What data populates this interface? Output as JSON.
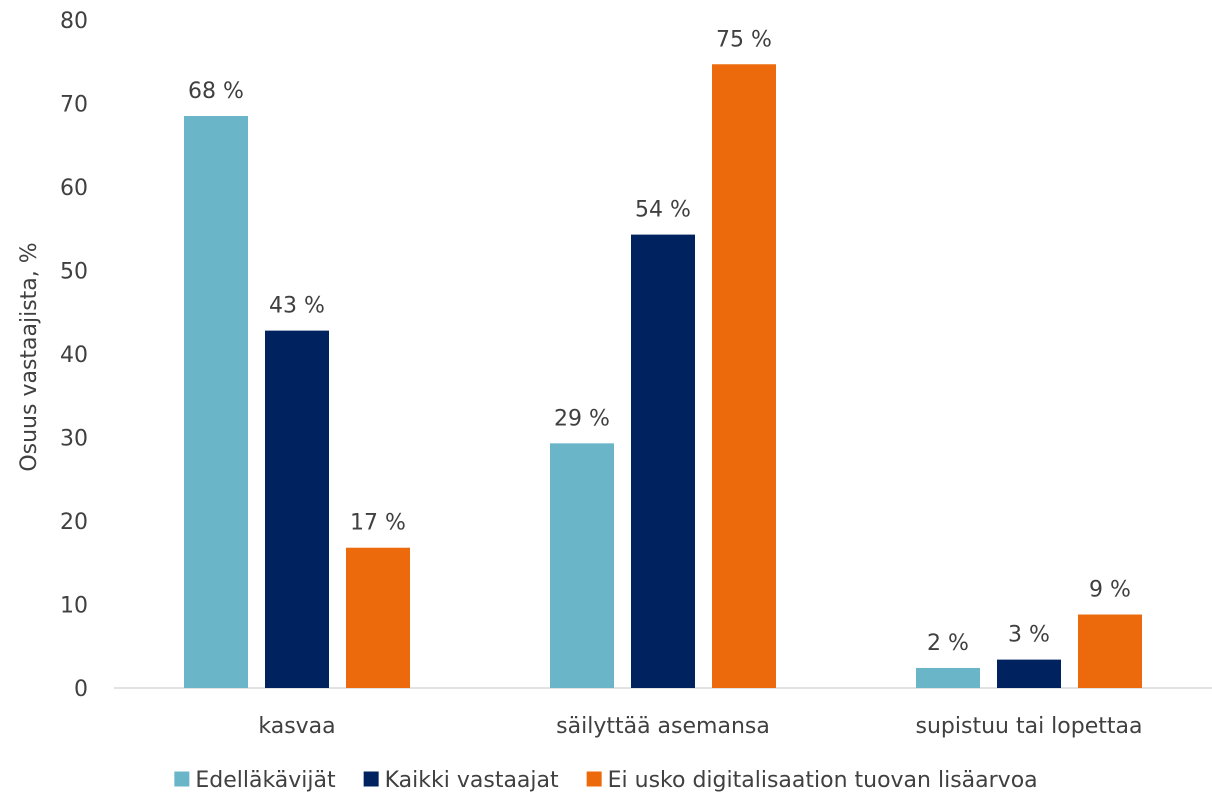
{
  "chart_data": {
    "type": "bar",
    "title": "",
    "xlabel": "",
    "ylabel": "Osuus vastaajista, %",
    "ylim": [
      0,
      80
    ],
    "yticks": [
      0,
      10,
      20,
      30,
      40,
      50,
      60,
      70,
      80
    ],
    "grid": false,
    "legend_position": "bottom",
    "categories": [
      "kasvaa",
      "säilyttää asemansa",
      "supistuu tai lopettaa"
    ],
    "series": [
      {
        "name": "Edelläkävijät",
        "color": "#6BB5C9",
        "values": [
          68.5,
          29.3,
          2.4
        ],
        "labels": [
          "68 %",
          "29 %",
          "2 %"
        ]
      },
      {
        "name": "Kaikki vastaajat",
        "color": "#002360",
        "values": [
          42.8,
          54.3,
          3.4
        ],
        "labels": [
          "43 %",
          "54 %",
          "3 %"
        ]
      },
      {
        "name": "Ei usko digitalisaation tuovan lisäarvoa",
        "color": "#EC6A0B",
        "values": [
          16.8,
          74.7,
          8.8
        ],
        "labels": [
          "17 %",
          "75 %",
          "9 %"
        ]
      }
    ]
  }
}
